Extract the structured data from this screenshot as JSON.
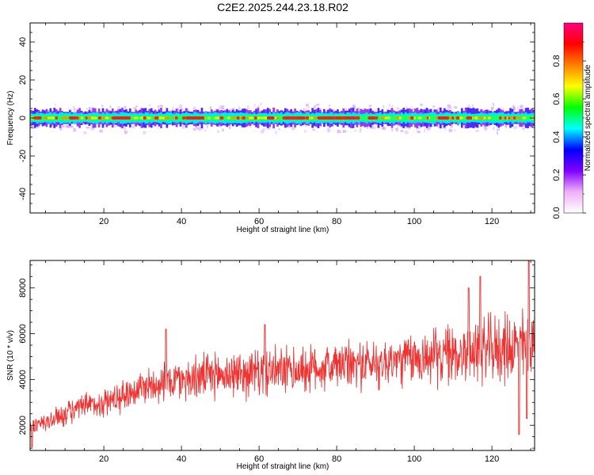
{
  "figure_title": "C2E2.2025.244.23.18.R02",
  "chart_data": [
    {
      "type": "heatmap",
      "id": "spectrogram",
      "title": "C2E2.2025.244.23.18.R02",
      "xlabel": "Height of straight line (km)",
      "ylabel": "Frequency (Hz)",
      "xlim": [
        1,
        131
      ],
      "ylim": [
        -50,
        50
      ],
      "xticks": [
        20,
        40,
        60,
        80,
        100,
        120
      ],
      "yticks": [
        -40,
        -20,
        0,
        20,
        40
      ],
      "band_center_hz": 0,
      "band_core_halfwidth_hz": 1.5,
      "band_outer_halfwidth_hz": 5,
      "high_amplitude_segments_km": [
        [
          2,
          4
        ],
        [
          11,
          13
        ],
        [
          22,
          27
        ],
        [
          41,
          46
        ],
        [
          62,
          64
        ],
        [
          66,
          72
        ],
        [
          75,
          85
        ],
        [
          88,
          90
        ],
        [
          106,
          109
        ]
      ],
      "colorbar": {
        "label": "Normalized spectral amplitude",
        "range": [
          0,
          1
        ],
        "ticks": [
          "0.0",
          "0.2",
          "0.4",
          "0.6",
          "0.8"
        ],
        "colors": [
          "#ffffff",
          "#f0b0f8",
          "#8000ff",
          "#0000ff",
          "#00ffff",
          "#00ff00",
          "#ffff00",
          "#ff8000",
          "#ff0000",
          "#ff0080"
        ]
      }
    },
    {
      "type": "line",
      "id": "snr",
      "xlabel": "Height of straight line (km)",
      "ylabel": "SNR (10 * v/v)",
      "xlim": [
        1,
        131
      ],
      "ylim": [
        900,
        9200
      ],
      "xticks": [
        20,
        40,
        60,
        80,
        100,
        120
      ],
      "yticks": [
        2000,
        4000,
        6000,
        8000
      ],
      "line_color": "#ee3333",
      "trend": {
        "x": [
          1,
          5,
          10,
          15,
          20,
          25,
          30,
          35,
          40,
          50,
          60,
          70,
          80,
          90,
          100,
          110,
          120,
          125,
          131
        ],
        "y": [
          1900,
          2100,
          2500,
          2800,
          3000,
          3300,
          3700,
          3900,
          4000,
          4200,
          4300,
          4400,
          4600,
          4700,
          4900,
          5100,
          5300,
          5400,
          5600
        ]
      },
      "noise_amplitude": {
        "x": [
          1,
          20,
          40,
          60,
          80,
          100,
          120,
          131
        ],
        "y": [
          400,
          600,
          900,
          1000,
          1000,
          1100,
          1400,
          1500
        ]
      },
      "peaks": [
        {
          "x": 36,
          "y": 6200
        },
        {
          "x": 61.5,
          "y": 6400
        },
        {
          "x": 114,
          "y": 8000
        },
        {
          "x": 117,
          "y": 8500
        },
        {
          "x": 129.5,
          "y": 9200
        }
      ],
      "troughs": [
        {
          "x": 1.5,
          "y": 1050
        },
        {
          "x": 127,
          "y": 1600
        },
        {
          "x": 129,
          "y": 2300
        }
      ]
    }
  ]
}
